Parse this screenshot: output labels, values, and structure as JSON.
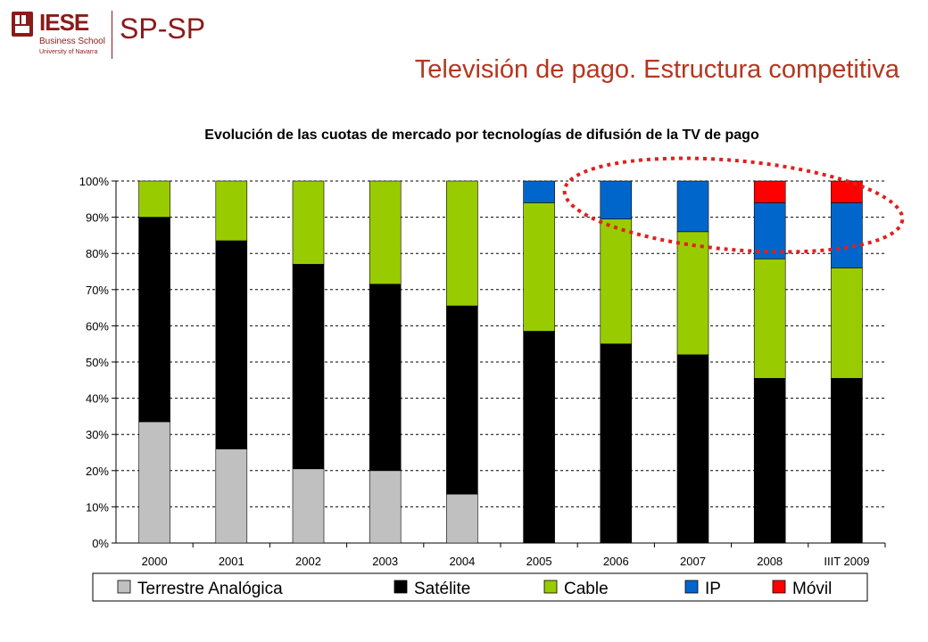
{
  "header": {
    "logo_main": "IESE",
    "logo_school": "Business School",
    "logo_university": "University of Navarra",
    "logo_program": "SP-SP"
  },
  "page_title": "Televisión  de  pago.  Estructura competitiva",
  "colors": {
    "title": "#b5361f",
    "logo": "#8b1a1a",
    "highlight_ellipse": "#e0201f"
  },
  "chart_data": {
    "type": "bar",
    "stacked": true,
    "title": "Evolución de las cuotas de mercado por tecnologías de difusión de la TV de pago",
    "categories": [
      "2000",
      "2001",
      "2002",
      "2003",
      "2004",
      "2005",
      "2006",
      "2007",
      "2008",
      "IIIT 2009"
    ],
    "y_ticks": [
      "0%",
      "10%",
      "20%",
      "30%",
      "40%",
      "50%",
      "60%",
      "70%",
      "80%",
      "90%",
      "100%"
    ],
    "ylim": [
      0,
      100
    ],
    "grid": true,
    "legend_position": "bottom",
    "series": [
      {
        "name": "Terrestre Analógica",
        "color": "#c0c0c0",
        "values": [
          33.5,
          26,
          20.5,
          20,
          13.5,
          0,
          0,
          0,
          0,
          0
        ]
      },
      {
        "name": "Satélite",
        "color": "#000000",
        "values": [
          56.5,
          57.5,
          56.5,
          51.5,
          52,
          58.5,
          55,
          52,
          45.5,
          45.5
        ]
      },
      {
        "name": "Cable",
        "color": "#99cc00",
        "values": [
          10,
          16.5,
          23,
          28.5,
          34.5,
          35.5,
          34.5,
          34,
          33,
          30.5
        ]
      },
      {
        "name": "IP",
        "color": "#0066cc",
        "values": [
          0,
          0,
          0,
          0,
          0,
          6,
          10.5,
          14,
          15.5,
          18
        ]
      },
      {
        "name": "Móvil",
        "color": "#ff0000",
        "values": [
          0,
          0,
          0,
          0,
          0,
          0,
          0,
          0,
          6,
          6
        ]
      }
    ],
    "annotation": "dotted red ellipse highlighting IP and Móvil segments 2006–IIIT 2009"
  }
}
